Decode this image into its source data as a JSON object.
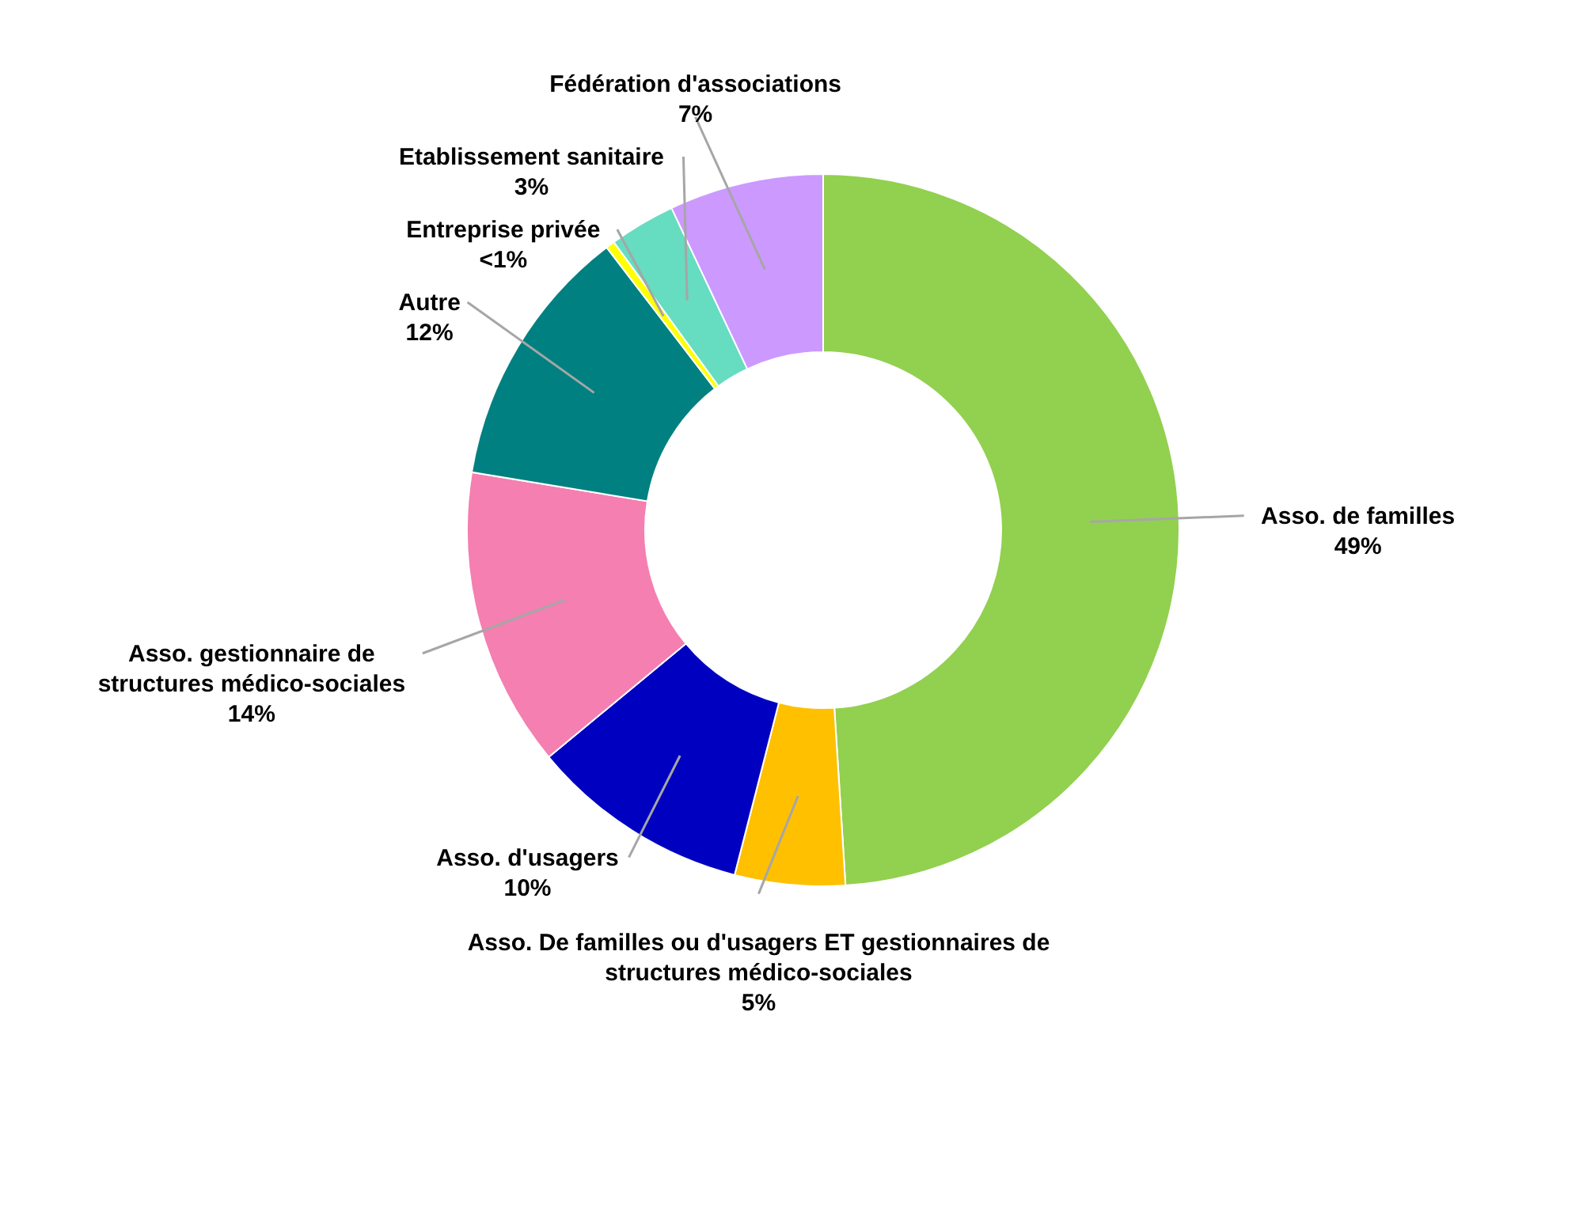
{
  "chart_data": {
    "type": "donut",
    "categories": [
      "Asso. de familles",
      "Asso. De familles ou d'usagers ET gestionnaires de structures médico-sociales",
      "Asso. d'usagers",
      "Asso. gestionnaire de structures médico-sociales",
      "Autre",
      "Entreprise privée",
      "Etablissement sanitaire",
      "Fédération d'associations"
    ],
    "values": [
      49,
      5,
      10,
      13.6,
      12,
      0.4,
      3,
      7
    ],
    "value_labels": [
      "49%",
      "5%",
      "10%",
      "14%",
      "12%",
      "<1%",
      "3%",
      "7%"
    ],
    "colors": [
      "#92d050",
      "#ffc000",
      "#0000c0",
      "#f47fb0",
      "#008080",
      "#ffff00",
      "#66dcc0",
      "#cc99ff"
    ]
  }
}
